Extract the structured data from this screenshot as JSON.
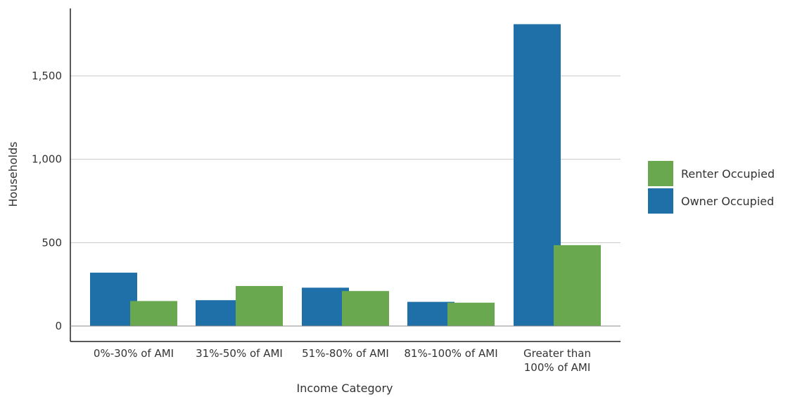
{
  "chart_data": {
    "type": "bar",
    "title": "",
    "xlabel": "Income Category",
    "ylabel": "Households",
    "categories": [
      [
        "0%-30% of AMI"
      ],
      [
        "31%-50% of AMI"
      ],
      [
        "51%-80% of AMI"
      ],
      [
        "81%-100% of AMI"
      ],
      [
        "Greater than",
        "100% of AMI"
      ]
    ],
    "series": [
      {
        "name": "Owner Occupied",
        "color": "#1f6fa8",
        "values": [
          320,
          155,
          230,
          145,
          1810
        ]
      },
      {
        "name": "Renter Occupied",
        "color": "#6aa84f",
        "values": [
          150,
          240,
          210,
          140,
          485
        ]
      }
    ],
    "ylim": [
      0,
      1900
    ],
    "yticks": [
      0,
      500,
      1000,
      1500
    ],
    "ytick_labels": [
      "0",
      "500",
      "1,000",
      "1,500"
    ],
    "grid": true,
    "legend": {
      "placement": "right",
      "order": [
        "Renter Occupied",
        "Owner Occupied"
      ]
    }
  }
}
